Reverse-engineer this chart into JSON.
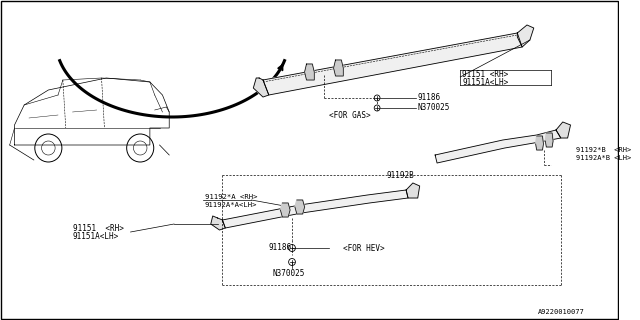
{
  "bg_color": "#ffffff",
  "line_color": "#000000",
  "diagram_id": "A9220010077",
  "gas_label": "<FOR GAS>",
  "hev_label": "<FOR HEV>",
  "label_91151_rh": "91151 <RH>",
  "label_91151a_lh": "91151A<LH>",
  "label_91186": "91186",
  "label_n370025": "N370025",
  "label_91192b": "91192B",
  "label_91192b_rh": "91192*B  <RH>",
  "label_91192a_b_lh": "91192A*B <LH>",
  "label_91192a_rh": "91192*A <RH>",
  "label_91192aa_lh": "91192A*A<LH>",
  "label_91151_rh2": "91151  <RH>",
  "label_91151a_lh2": "91151A<LH>"
}
